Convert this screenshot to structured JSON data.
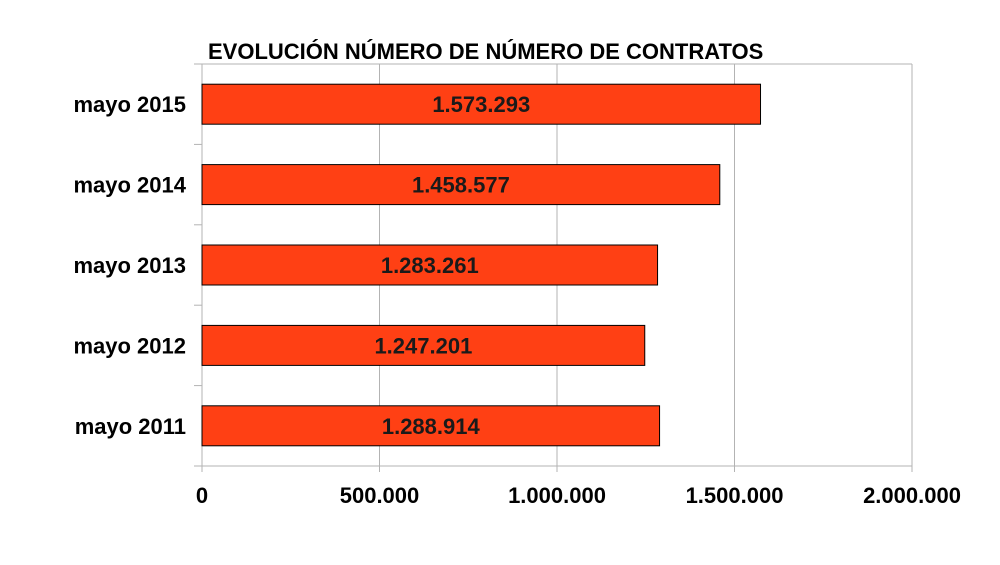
{
  "chart_data": {
    "type": "bar",
    "orientation": "horizontal",
    "title": "EVOLUCIÓN NÚMERO DE NÚMERO DE CONTRATOS",
    "categories": [
      "mayo 2015",
      "mayo 2014",
      "mayo  2013",
      "mayo 2012",
      "mayo 2011"
    ],
    "values": [
      1573293,
      1458577,
      1283261,
      1247201,
      1288914
    ],
    "data_labels": [
      "1.573.293",
      "1.458.577",
      "1.283.261",
      "1.247.201",
      "1.288.914"
    ],
    "x_ticks": [
      0,
      500000,
      1000000,
      1500000,
      2000000
    ],
    "x_tick_labels": [
      "0",
      "500.000",
      "1.000.000",
      "1.500.000",
      "2.000.000"
    ],
    "xlim": [
      0,
      2000000
    ],
    "xlabel": "",
    "ylabel": "",
    "grid": true,
    "legend": "none",
    "bar_color": "#ff4014",
    "bar_border_color": "#000000"
  }
}
